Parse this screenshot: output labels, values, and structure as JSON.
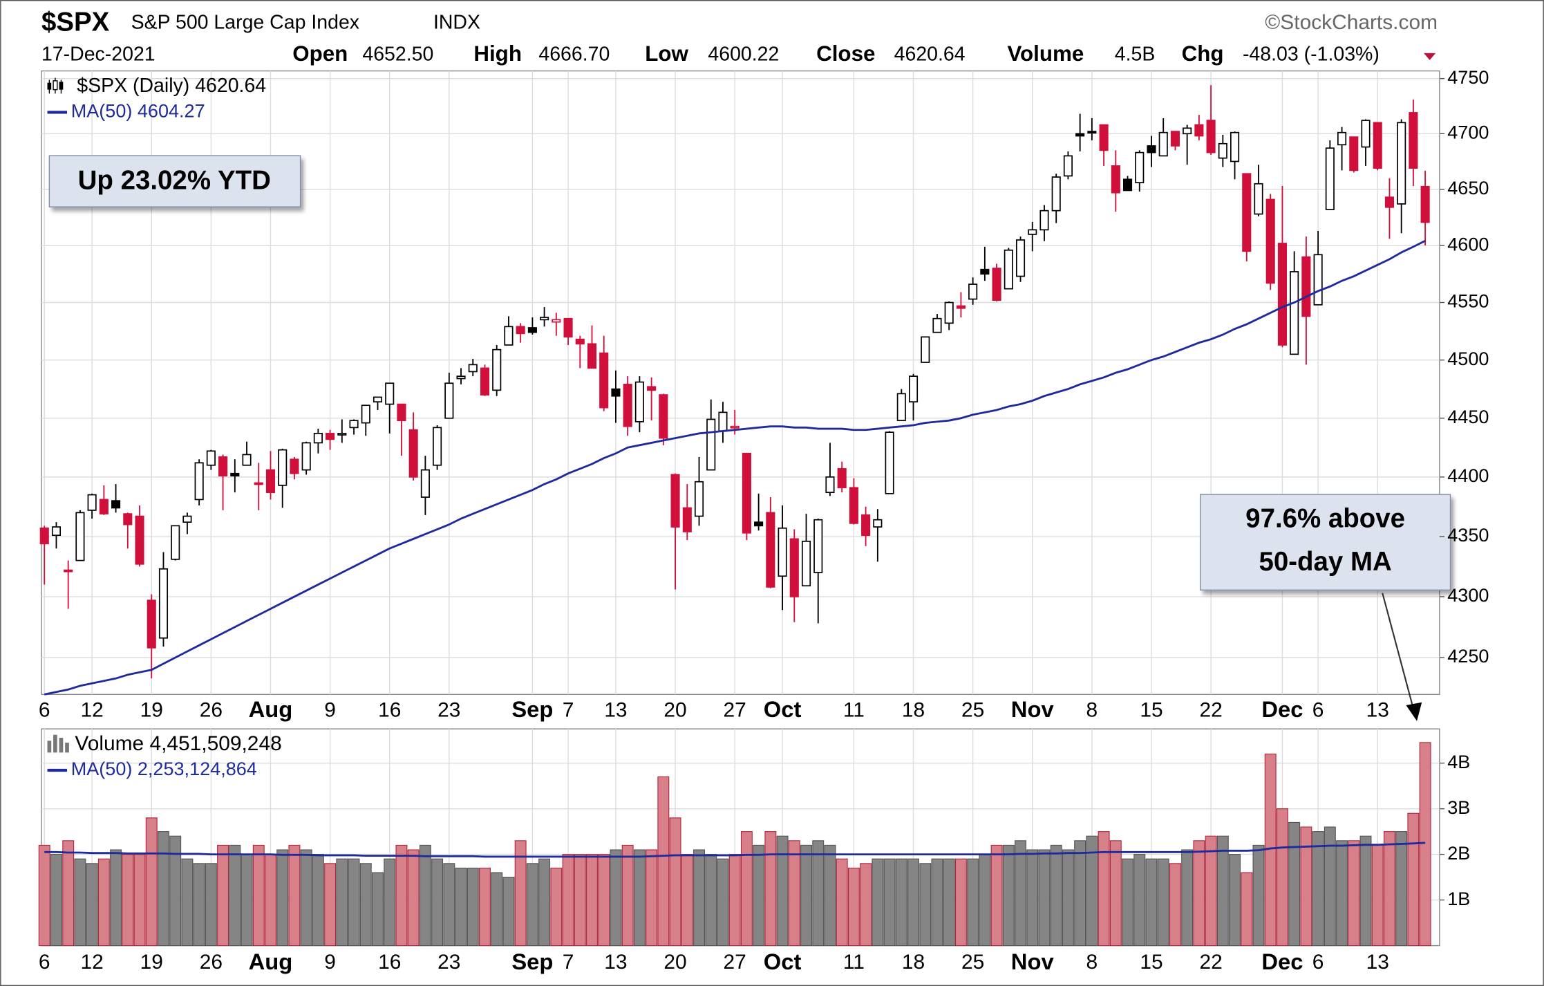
{
  "chart_data": {
    "type": "candlestick",
    "title": "$SPX",
    "subtitle": "S&P 500 Large Cap Index",
    "exchange": "INDX",
    "source": "©StockCharts.com",
    "date": "17-Dec-2021",
    "quote": [
      {
        "label": "Open",
        "value": "4652.50"
      },
      {
        "label": "High",
        "value": "4666.70"
      },
      {
        "label": "Low",
        "value": "4600.22"
      },
      {
        "label": "Close",
        "value": "4620.64"
      },
      {
        "label": "Volume",
        "value": "4.5B"
      },
      {
        "label": "Chg",
        "value": "-48.03 (-1.03%)"
      }
    ],
    "legend": "$SPX (Daily) 4620.64",
    "log_scale": true,
    "grid": true,
    "down_color": "#d0103a",
    "up_color": "#000000",
    "ylim": [
      4220,
      4757
    ],
    "yticks": [
      4250,
      4300,
      4350,
      4400,
      4450,
      4500,
      4550,
      4600,
      4650,
      4700,
      4750
    ],
    "categories": [
      "6",
      null,
      null,
      null,
      "12",
      null,
      null,
      null,
      null,
      "19",
      null,
      null,
      null,
      null,
      "26",
      null,
      null,
      null,
      null,
      "Aug",
      null,
      null,
      null,
      null,
      "9",
      null,
      null,
      null,
      null,
      "16",
      null,
      null,
      null,
      null,
      "23",
      null,
      null,
      null,
      null,
      null,
      null,
      "Sep",
      null,
      null,
      "7",
      null,
      null,
      null,
      "13",
      null,
      null,
      null,
      null,
      "20",
      null,
      null,
      null,
      null,
      "27",
      null,
      null,
      null,
      "Oct",
      null,
      null,
      null,
      null,
      null,
      "11",
      null,
      null,
      null,
      null,
      "18",
      null,
      null,
      null,
      null,
      "25",
      null,
      null,
      null,
      null,
      "Nov",
      null,
      null,
      null,
      null,
      "8",
      null,
      null,
      null,
      null,
      "15",
      null,
      null,
      null,
      null,
      "22",
      null,
      null,
      null,
      null,
      null,
      "Dec",
      null,
      null,
      "6",
      null,
      null,
      null,
      null,
      "13",
      null,
      null,
      null,
      null
    ],
    "open": [
      4357,
      4351,
      4322,
      4330,
      4372,
      4381,
      4380,
      4369,
      4367,
      4297,
      4266,
      4331,
      4362,
      4381,
      4410,
      4417,
      4403,
      4410,
      4395,
      4406,
      4393,
      4415,
      4406,
      4429,
      4437,
      4436,
      4442,
      4446,
      4464,
      4462,
      4462,
      4440,
      4383,
      4410,
      4450,
      4484,
      4490,
      4493,
      4474,
      4513,
      4529,
      4528,
      4535,
      4533,
      4536,
      4518,
      4514,
      4506,
      4475,
      4479,
      4447,
      4477,
      4470,
      4402,
      4374,
      4367,
      4406,
      4439,
      4442,
      4420,
      4362,
      4370,
      4317,
      4348,
      4309,
      4320,
      4387,
      4407,
      4391,
      4368,
      4358,
      4386,
      4448,
      4464,
      4498,
      4524,
      4532,
      4547,
      4553,
      4579,
      4580,
      4562,
      4573,
      4610,
      4614,
      4631,
      4662,
      4700,
      4702,
      4708,
      4671,
      4659,
      4656,
      4689,
      4680,
      4702,
      4700,
      4708,
      4712,
      4678,
      4675,
      4664,
      4628,
      4641,
      4602,
      4505,
      4590,
      4548,
      4632,
      4690,
      4697,
      4688,
      4710,
      4643,
      4637,
      4719,
      4652.5
    ],
    "high": [
      4359,
      4362,
      4330,
      4372,
      4386,
      4393,
      4394,
      4370,
      4376,
      4302,
      4337,
      4359,
      4370,
      4415,
      4423,
      4419,
      4415,
      4430,
      4412,
      4422,
      4424,
      4417,
      4430,
      4441,
      4440,
      4449,
      4449,
      4461,
      4468,
      4480,
      4462,
      4455,
      4418,
      4444,
      4489,
      4493,
      4501,
      4496,
      4513,
      4538,
      4532,
      4537,
      4546,
      4541,
      4536,
      4521,
      4530,
      4521,
      4491,
      4486,
      4486,
      4485,
      4471,
      4403,
      4394,
      4417,
      4466,
      4464,
      4457,
      4420,
      4386,
      4383,
      4376,
      4356,
      4369,
      4365,
      4429,
      4413,
      4399,
      4375,
      4373,
      4439,
      4475,
      4488,
      4520,
      4540,
      4551,
      4559,
      4572,
      4599,
      4584,
      4598,
      4608,
      4621,
      4636,
      4664,
      4684,
      4718,
      4714,
      4708,
      4685,
      4662,
      4685,
      4698,
      4714,
      4702,
      4708,
      4717,
      4744,
      4699,
      4702,
      4664,
      4672,
      4646,
      4653,
      4595,
      4608,
      4613,
      4694,
      4706,
      4697,
      4713,
      4710,
      4660,
      4713,
      4731,
      4666.7
    ],
    "low": [
      4310,
      4340,
      4290,
      4330,
      4365,
      4368,
      4370,
      4340,
      4325,
      4233,
      4259,
      4330,
      4352,
      4376,
      4406,
      4372,
      4387,
      4410,
      4372,
      4381,
      4374,
      4398,
      4402,
      4420,
      4423,
      4429,
      4436,
      4435,
      4457,
      4437,
      4418,
      4397,
      4368,
      4406,
      4450,
      4479,
      4486,
      4469,
      4469,
      4513,
      4515,
      4522,
      4529,
      4521,
      4513,
      4493,
      4493,
      4456,
      4446,
      4435,
      4438,
      4448,
      4427,
      4306,
      4347,
      4359,
      4406,
      4429,
      4436,
      4347,
      4355,
      4307,
      4289,
      4279,
      4309,
      4278,
      4384,
      4387,
      4360,
      4342,
      4329,
      4386,
      4448,
      4448,
      4498,
      4524,
      4526,
      4537,
      4548,
      4569,
      4551,
      4562,
      4568,
      4595,
      4604,
      4620,
      4659,
      4684,
      4694,
      4671,
      4630,
      4649,
      4648,
      4670,
      4680,
      4685,
      4672,
      4694,
      4681,
      4670,
      4659,
      4586,
      4626,
      4561,
      4511,
      4505,
      4496,
      4548,
      4632,
      4667,
      4665,
      4671,
      4667,
      4606,
      4611,
      4653,
      4600.22
    ],
    "close": [
      4344,
      4358,
      4321,
      4370,
      4385,
      4369,
      4374,
      4360,
      4327,
      4258,
      4323,
      4359,
      4367,
      4412,
      4422,
      4401,
      4401,
      4419,
      4395,
      4387,
      4423,
      4403,
      4429,
      4437,
      4432,
      4437,
      4448,
      4461,
      4468,
      4480,
      4448,
      4400,
      4406,
      4442,
      4480,
      4486,
      4496,
      4470,
      4509,
      4529,
      4523,
      4524,
      4537,
      4535,
      4520,
      4514,
      4493,
      4459,
      4469,
      4443,
      4481,
      4474,
      4433,
      4358,
      4354,
      4396,
      4449,
      4455,
      4443,
      4353,
      4359,
      4308,
      4357,
      4300,
      4346,
      4364,
      4400,
      4391,
      4361,
      4351,
      4364,
      4438,
      4471,
      4486,
      4520,
      4536,
      4550,
      4545,
      4566,
      4575,
      4552,
      4596,
      4605,
      4614,
      4631,
      4661,
      4680,
      4698,
      4702,
      4685,
      4647,
      4649,
      4683,
      4683,
      4701,
      4689,
      4705,
      4698,
      4683,
      4691,
      4701,
      4595,
      4655,
      4567,
      4513,
      4577,
      4538,
      4592,
      4687,
      4701,
      4667,
      4712,
      4669,
      4634,
      4710,
      4669,
      4620.64
    ],
    "ma": {
      "name": "MA(50) 4604.27",
      "color": "#1f2a9c",
      "values": [
        4220,
        4222,
        4224,
        4227,
        4229,
        4231,
        4233,
        4236,
        4238,
        4240,
        4245,
        4250,
        4255,
        4260,
        4265,
        4270,
        4275,
        4280,
        4285,
        4290,
        4295,
        4300,
        4305,
        4310,
        4315,
        4320,
        4325,
        4330,
        4335,
        4340,
        4344,
        4348,
        4352,
        4356,
        4360,
        4365,
        4369,
        4373,
        4377,
        4381,
        4385,
        4389,
        4394,
        4398,
        4403,
        4407,
        4411,
        4416,
        4420,
        4425,
        4427,
        4429,
        4431,
        4433,
        4435,
        4437,
        4438,
        4439,
        4440,
        4441,
        4442,
        4443,
        4443,
        4442,
        4442,
        4441,
        4441,
        4441,
        4440,
        4440,
        4441,
        4442,
        4443,
        4444,
        4446,
        4447,
        4448,
        4450,
        4453,
        4455,
        4457,
        4460,
        4462,
        4465,
        4469,
        4472,
        4475,
        4479,
        4482,
        4485,
        4489,
        4492,
        4496,
        4500,
        4503,
        4507,
        4511,
        4515,
        4518,
        4522,
        4527,
        4531,
        4536,
        4541,
        4546,
        4550,
        4555,
        4560,
        4564,
        4569,
        4573,
        4578,
        4583,
        4588,
        4594,
        4599,
        4604.27
      ]
    },
    "volume": {
      "legend": "Volume 4,451,509,248",
      "ylim": [
        0,
        4.75
      ],
      "yticks": [
        {
          "value": 1,
          "label": "1B"
        },
        {
          "value": 2,
          "label": "2B"
        },
        {
          "value": 3,
          "label": "3B"
        },
        {
          "value": 4,
          "label": "4B"
        }
      ],
      "values": [
        2.2,
        2.0,
        2.3,
        1.9,
        1.8,
        1.9,
        2.1,
        2.0,
        2.0,
        2.8,
        2.5,
        2.4,
        1.9,
        1.8,
        1.8,
        2.2,
        2.2,
        2.0,
        2.2,
        2.0,
        2.1,
        2.2,
        2.1,
        2.0,
        1.8,
        1.9,
        1.9,
        1.8,
        1.6,
        1.9,
        2.2,
        2.1,
        2.2,
        1.9,
        1.8,
        1.7,
        1.7,
        1.7,
        1.6,
        1.5,
        2.3,
        1.8,
        1.9,
        1.7,
        2.0,
        2.0,
        2.0,
        2.0,
        2.1,
        2.2,
        2.1,
        2.1,
        3.7,
        2.8,
        2.0,
        2.1,
        2.0,
        1.9,
        2.0,
        2.5,
        2.2,
        2.5,
        2.4,
        2.3,
        2.2,
        2.3,
        2.2,
        1.9,
        1.7,
        1.8,
        1.9,
        1.9,
        1.9,
        1.9,
        1.8,
        1.9,
        1.9,
        1.9,
        1.9,
        2.0,
        2.2,
        2.2,
        2.3,
        2.1,
        2.1,
        2.2,
        2.1,
        2.3,
        2.4,
        2.5,
        2.3,
        1.9,
        2.0,
        1.9,
        1.9,
        1.8,
        2.1,
        2.3,
        2.4,
        2.4,
        2.0,
        1.6,
        2.2,
        4.2,
        3.0,
        2.7,
        2.6,
        2.5,
        2.6,
        2.3,
        2.3,
        2.4,
        2.2,
        2.5,
        2.5,
        2.9,
        4.451509248
      ],
      "ma": {
        "name": "MA(50) 2,253,124,864",
        "color": "#1f2a9c",
        "values": [
          2.05,
          2.05,
          2.04,
          2.04,
          2.03,
          2.03,
          2.03,
          2.02,
          2.02,
          2.02,
          2.02,
          2.01,
          2.01,
          2.01,
          2.0,
          2.0,
          2.0,
          2.0,
          2.0,
          2.0,
          1.99,
          1.99,
          1.99,
          1.98,
          1.98,
          1.98,
          1.98,
          1.97,
          1.97,
          1.97,
          1.97,
          1.97,
          1.96,
          1.96,
          1.96,
          1.96,
          1.96,
          1.95,
          1.95,
          1.95,
          1.95,
          1.95,
          1.95,
          1.95,
          1.95,
          1.95,
          1.95,
          1.95,
          1.95,
          1.95,
          1.95,
          1.96,
          1.97,
          1.98,
          1.98,
          1.98,
          1.98,
          1.98,
          1.98,
          1.99,
          1.99,
          2.0,
          2.0,
          2.0,
          2.0,
          2.0,
          2.0,
          2.0,
          2.0,
          2.0,
          2.0,
          2.0,
          2.0,
          2.0,
          2.0,
          2.0,
          2.0,
          2.0,
          2.0,
          2.0,
          2.0,
          2.0,
          2.01,
          2.01,
          2.02,
          2.02,
          2.03,
          2.03,
          2.04,
          2.05,
          2.05,
          2.05,
          2.05,
          2.05,
          2.05,
          2.05,
          2.05,
          2.06,
          2.07,
          2.08,
          2.08,
          2.08,
          2.09,
          2.13,
          2.15,
          2.16,
          2.17,
          2.18,
          2.19,
          2.19,
          2.2,
          2.21,
          2.21,
          2.22,
          2.23,
          2.24,
          2.253
        ]
      }
    },
    "annotations": [
      {
        "text": "Up 23.02% YTD"
      },
      {
        "lines": [
          "97.6% above",
          "50-day MA"
        ]
      }
    ]
  }
}
